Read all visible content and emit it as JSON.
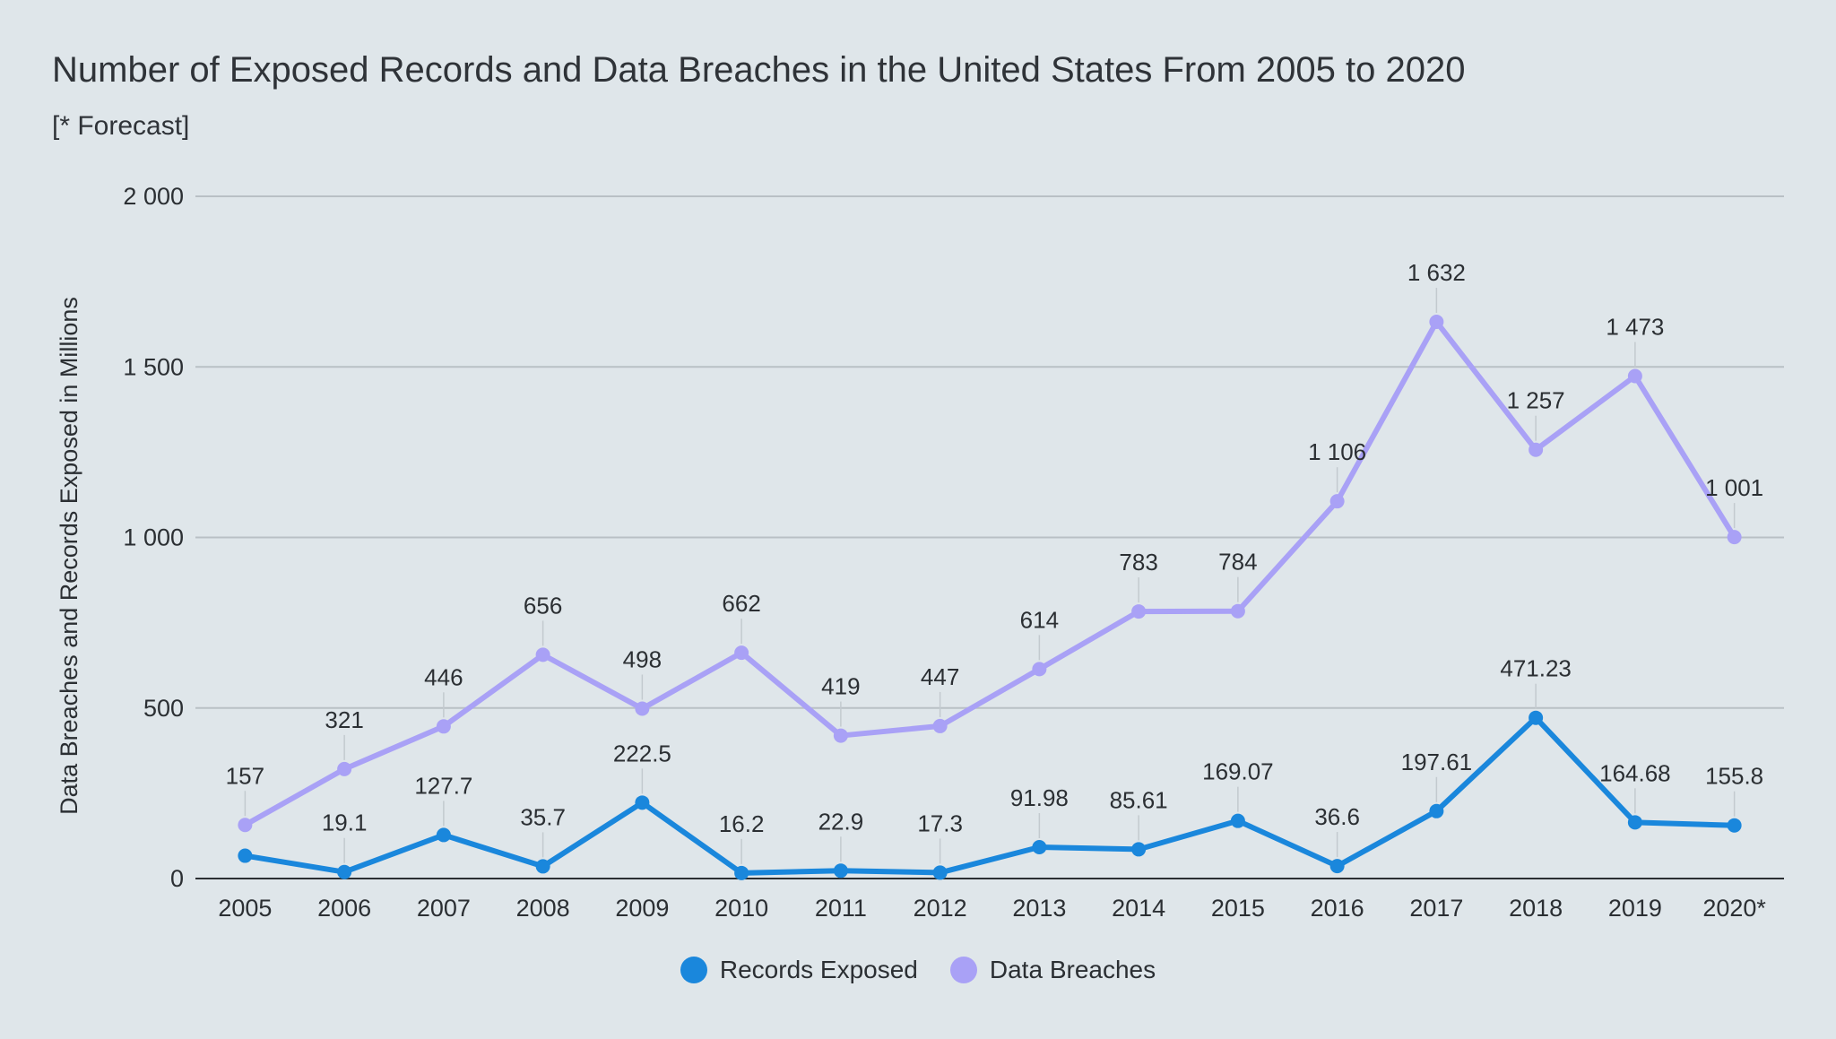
{
  "chart_data": {
    "type": "line",
    "title": "Number of Exposed Records and Data Breaches in the United States From 2005 to 2020",
    "subtitle": "[* Forecast]",
    "xlabel": "",
    "ylabel": "Data Breaches and Records Exposed in Millions",
    "categories": [
      "2005",
      "2006",
      "2007",
      "2008",
      "2009",
      "2010",
      "2011",
      "2012",
      "2013",
      "2014",
      "2015",
      "2016",
      "2017",
      "2018",
      "2019",
      "2020*"
    ],
    "ylim": [
      0,
      2000
    ],
    "yticks": [
      {
        "value": 0,
        "label": "0"
      },
      {
        "value": 500,
        "label": "500"
      },
      {
        "value": 1000,
        "label": "1 000"
      },
      {
        "value": 1500,
        "label": "1 500"
      },
      {
        "value": 2000,
        "label": "2 000"
      }
    ],
    "grid": true,
    "legend_position": "bottom",
    "series": [
      {
        "name": "Records Exposed",
        "color": "#1a87dc",
        "values": [
          66.9,
          19.1,
          127.7,
          35.7,
          222.5,
          16.2,
          22.9,
          17.3,
          91.98,
          85.61,
          169.07,
          36.6,
          197.61,
          471.23,
          164.68,
          155.8
        ],
        "labels": [
          "",
          "19.1",
          "127.7",
          "35.7",
          "222.5",
          "16.2",
          "22.9",
          "17.3",
          "91.98",
          "85.61",
          "169.07",
          "36.6",
          "197.61",
          "471.23",
          "164.68",
          "155.8"
        ]
      },
      {
        "name": "Data Breaches",
        "color": "#a9a1f6",
        "values": [
          157,
          321,
          446,
          656,
          498,
          662,
          419,
          447,
          614,
          783,
          784,
          1106,
          1632,
          1257,
          1473,
          1001
        ],
        "labels": [
          "157",
          "321",
          "446",
          "656",
          "498",
          "662",
          "419",
          "447",
          "614",
          "783",
          "784",
          "1 106",
          "1 632",
          "1 257",
          "1 473",
          "1 001"
        ]
      }
    ]
  }
}
